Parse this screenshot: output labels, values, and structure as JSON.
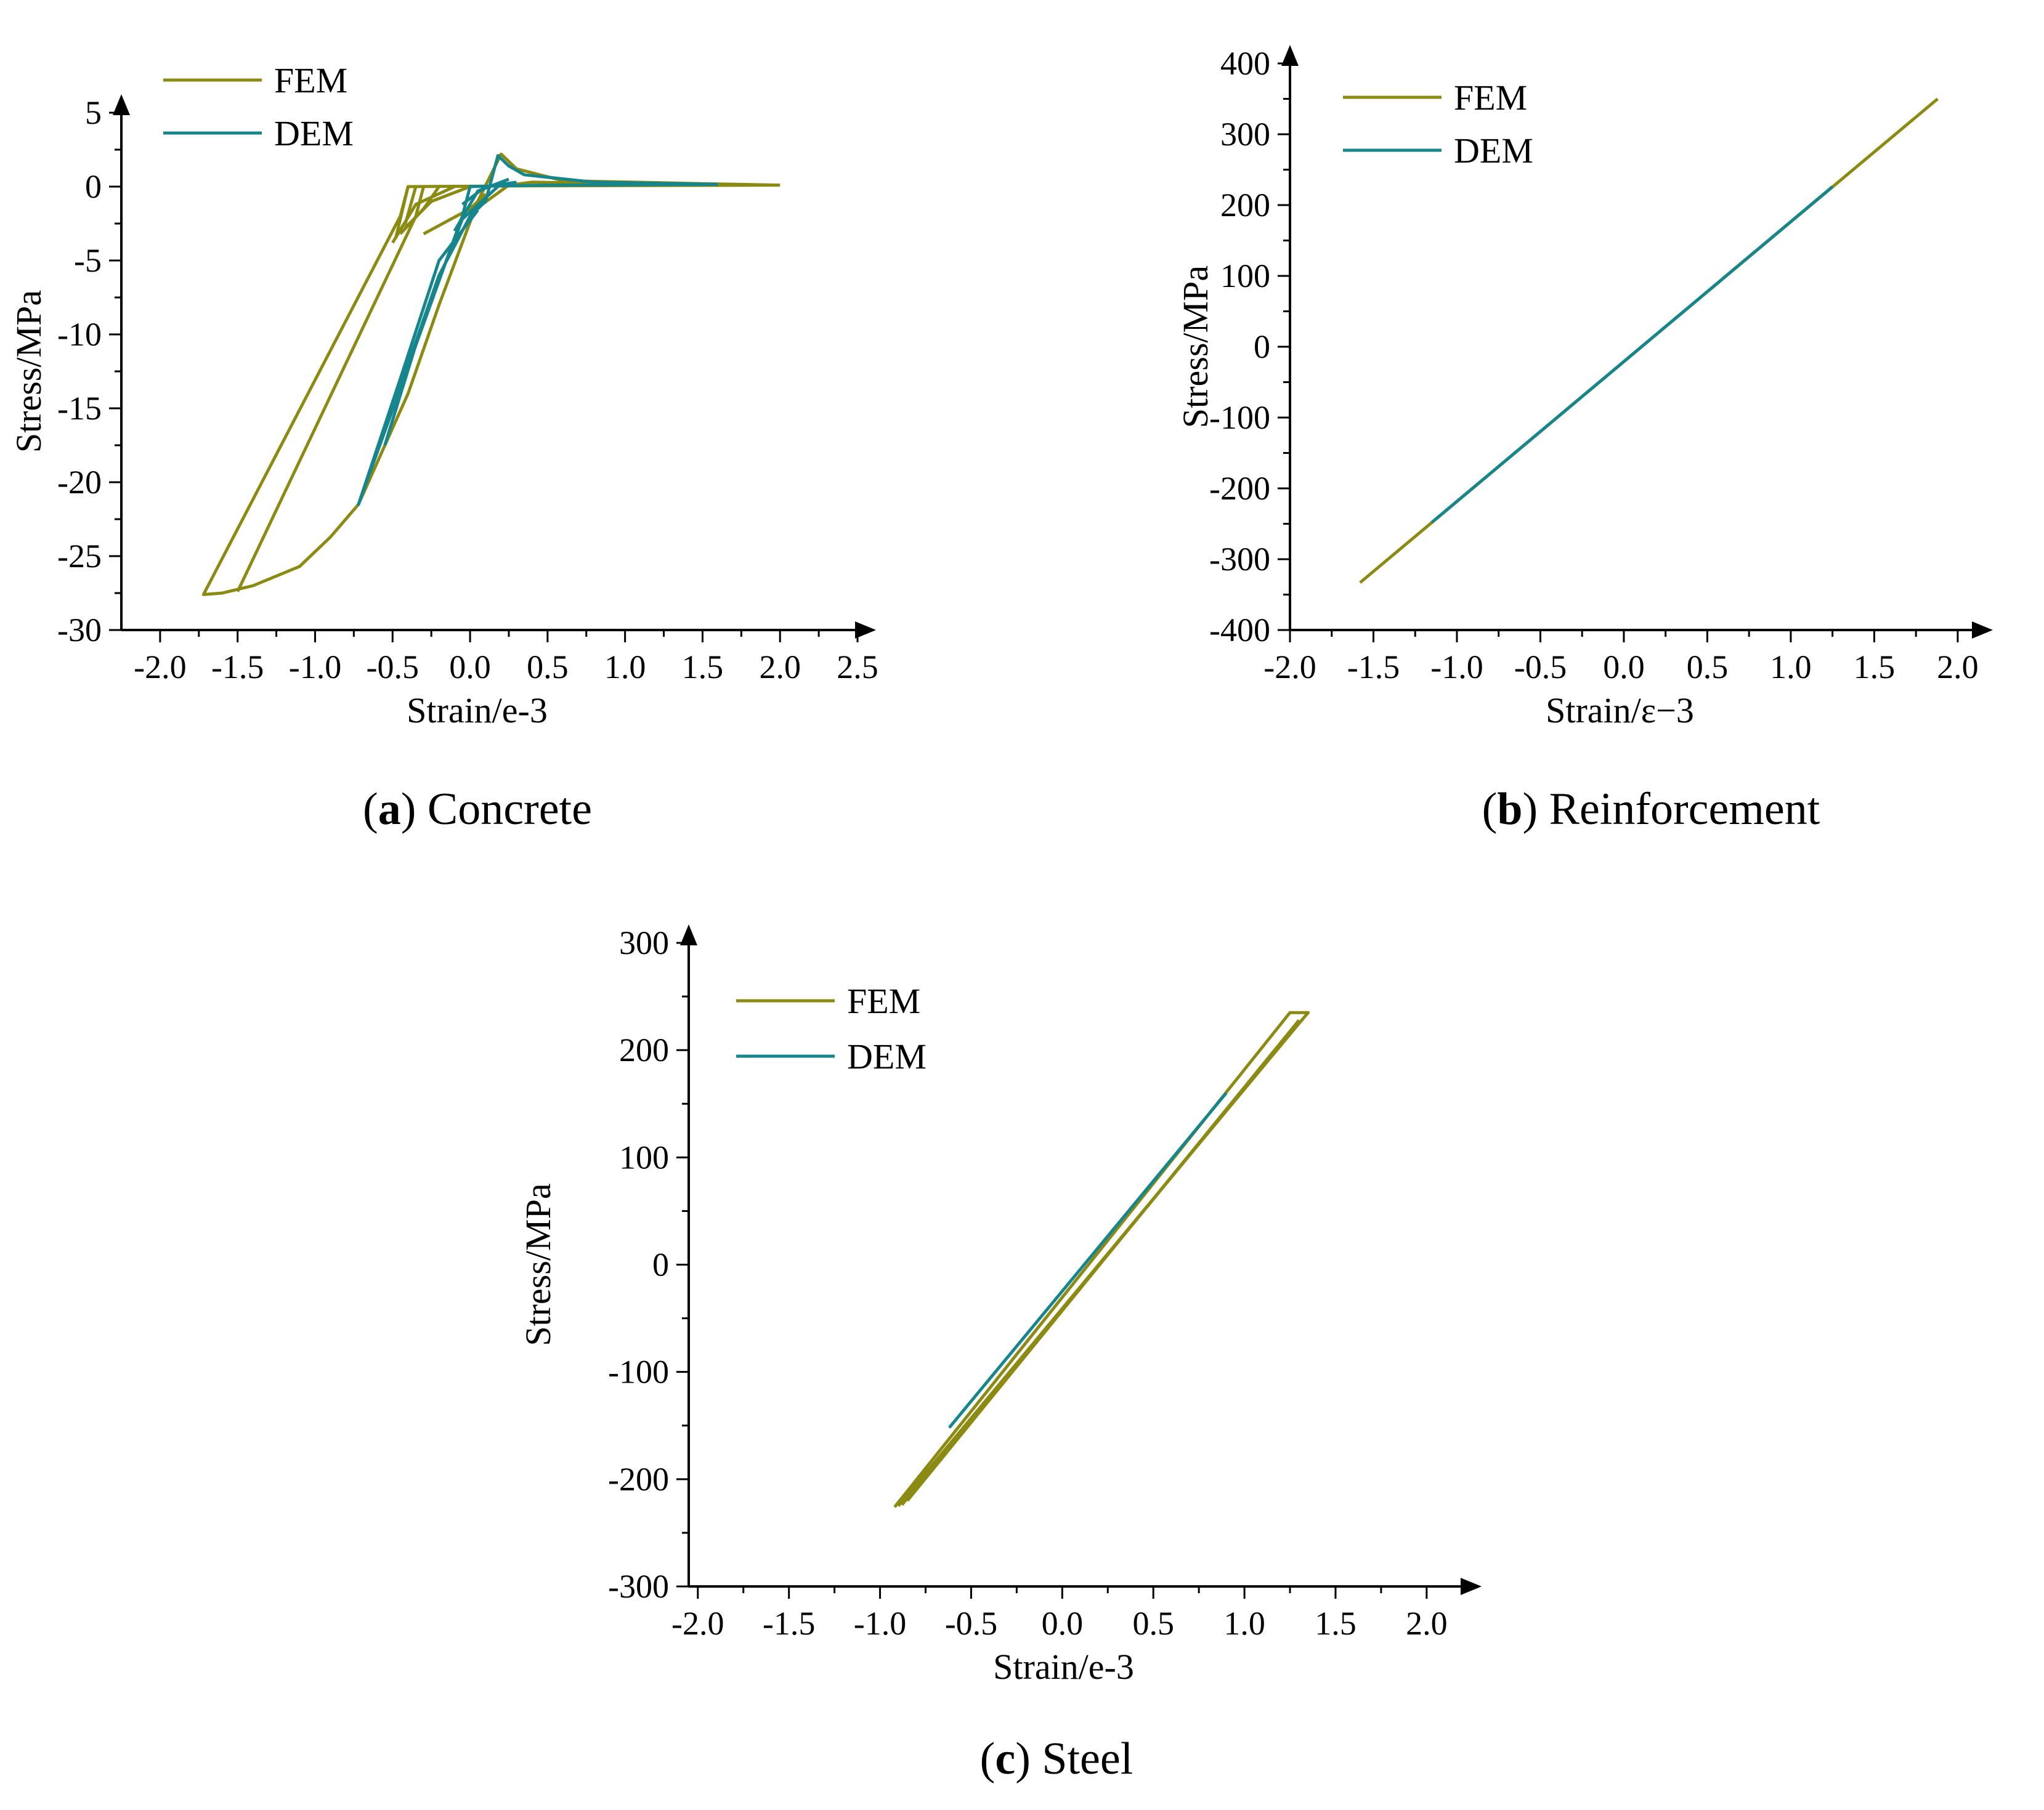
{
  "colors": {
    "FEM": "#8b8b14",
    "DEM": "#17858c",
    "axis": "#000000"
  },
  "chart_data": [
    {
      "type": "line",
      "caption": {
        "letter": "a",
        "text": "Concrete"
      },
      "xlabel": "Strain/e-3",
      "ylabel": "Stress/MPa",
      "xlim": [
        -2.25,
        2.5
      ],
      "ylim": [
        -30,
        5
      ],
      "xticks": [
        -2.0,
        -1.5,
        -1.0,
        -0.5,
        0.0,
        0.5,
        1.0,
        1.5,
        2.0,
        2.5
      ],
      "xtick_labels": [
        "-2.0",
        "-1.5",
        "-1.0",
        "-0.5",
        "0.0",
        "0.5",
        "1.0",
        "1.5",
        "2.0",
        "2.5"
      ],
      "yticks": [
        -30,
        -25,
        -20,
        -15,
        -10,
        -5,
        0,
        5
      ],
      "ytick_labels": [
        "-30",
        "-25",
        "-20",
        "-15",
        "-10",
        "-5",
        "0",
        "5"
      ],
      "legend_position": "top-left",
      "grid": false,
      "series": [
        {
          "name": "FEM",
          "segments": [
            [
              [
                2.0,
                0.1
              ],
              [
                0.4,
                0.05
              ],
              [
                -0.4,
                0
              ],
              [
                -0.45,
                -2
              ],
              [
                -1.72,
                -27.6
              ],
              [
                -1.6,
                -27.5
              ],
              [
                -1.4,
                -27
              ],
              [
                -1.1,
                -25.7
              ],
              [
                -0.9,
                -23.7
              ],
              [
                -0.72,
                -21.5
              ],
              [
                -0.4,
                -14
              ],
              [
                -0.2,
                -8
              ],
              [
                0.05,
                -1
              ],
              [
                0.2,
                2.2
              ],
              [
                0.3,
                1.2
              ],
              [
                0.6,
                0.4
              ],
              [
                1.5,
                0.2
              ],
              [
                2.0,
                0.1
              ]
            ],
            [
              [
                -0.3,
                0
              ],
              [
                -0.35,
                -2
              ],
              [
                -1.5,
                -27.4
              ]
            ],
            [
              [
                -0.2,
                0
              ],
              [
                -0.3,
                -1.5
              ],
              [
                -0.45,
                -3.2
              ]
            ],
            [
              [
                -0.1,
                0
              ],
              [
                -0.35,
                -1.2
              ],
              [
                -0.5,
                -3.8
              ]
            ],
            [
              [
                0,
                0
              ],
              [
                -0.25,
                -1
              ],
              [
                -0.42,
                -2.8
              ]
            ],
            [
              [
                -0.4,
                0
              ],
              [
                -0.48,
                -3.5
              ]
            ],
            [
              [
                -0.35,
                0
              ],
              [
                -0.42,
                -2.6
              ]
            ],
            [
              [
                0,
                -1.8
              ],
              [
                0.25,
                0.1
              ],
              [
                0.4,
                0.3
              ],
              [
                1.0,
                0.2
              ]
            ],
            [
              [
                -0.3,
                -3.2
              ],
              [
                0,
                -1.5
              ],
              [
                0.1,
                -0.5
              ]
            ]
          ]
        },
        {
          "name": "DEM",
          "segments": [
            [
              [
                1.6,
                0.15
              ],
              [
                0.5,
                0.1
              ],
              [
                0.2,
                0.05
              ],
              [
                0,
                0
              ],
              [
                -0.05,
                -2
              ],
              [
                -0.72,
                -21.5
              ],
              [
                -0.6,
                -18
              ],
              [
                -0.4,
                -12
              ],
              [
                -0.2,
                -6
              ],
              [
                0,
                -2
              ],
              [
                0.1,
                -1
              ],
              [
                0.18,
                2.1
              ],
              [
                0.25,
                1.4
              ],
              [
                0.35,
                0.8
              ],
              [
                0.8,
                0.3
              ],
              [
                1.6,
                0.15
              ]
            ],
            [
              [
                -0.72,
                -21.5
              ],
              [
                -0.45,
                -13
              ],
              [
                -0.2,
                -5
              ],
              [
                0.05,
                -1.6
              ]
            ],
            [
              [
                -0.55,
                -17.5
              ],
              [
                -0.3,
                -9
              ],
              [
                -0.05,
                -2.2
              ],
              [
                0.2,
                0.2
              ]
            ],
            [
              [
                -0.1,
                -3
              ],
              [
                0.05,
                -0.3
              ],
              [
                0.25,
                0.5
              ]
            ],
            [
              [
                -0.05,
                -1.2
              ],
              [
                0.1,
                0
              ],
              [
                0.3,
                0.3
              ]
            ]
          ]
        }
      ]
    },
    {
      "type": "line",
      "caption": {
        "letter": "b",
        "text": "Reinforcement"
      },
      "xlabel": "Strain/ε−3",
      "ylabel": "Stress/MPa",
      "xlim": [
        -2.0,
        2.1
      ],
      "ylim": [
        -400,
        400
      ],
      "xticks": [
        -2.0,
        -1.5,
        -1.0,
        -0.5,
        0.0,
        0.5,
        1.0,
        1.5,
        2.0
      ],
      "xtick_labels": [
        "-2.0",
        "-1.5",
        "-1.0",
        "-0.5",
        "0.0",
        "0.5",
        "1.0",
        "1.5",
        "2.0"
      ],
      "yticks": [
        -400,
        -300,
        -200,
        -100,
        0,
        100,
        200,
        300,
        400
      ],
      "ytick_labels": [
        "-400",
        "-300",
        "-200",
        "-100",
        "0",
        "100",
        "200",
        "300",
        "400"
      ],
      "legend_position": "top-left",
      "grid": false,
      "series": [
        {
          "name": "FEM",
          "segments": [
            [
              [
                -1.58,
                -333
              ],
              [
                1.88,
                350
              ]
            ]
          ]
        },
        {
          "name": "DEM",
          "segments": [
            [
              [
                -1.15,
                -248
              ],
              [
                1.25,
                226
              ]
            ]
          ]
        }
      ]
    },
    {
      "type": "line",
      "caption": {
        "letter": "c",
        "text": "Steel"
      },
      "xlabel": "Strain/e-3",
      "ylabel": "Stress/MPa",
      "xlim": [
        -2.05,
        2.2
      ],
      "ylim": [
        -300,
        300
      ],
      "xticks": [
        -2.0,
        -1.5,
        -1.0,
        -0.5,
        0.0,
        0.5,
        1.0,
        1.5,
        2.0
      ],
      "xtick_labels": [
        "-2.0",
        "-1.5",
        "-1.0",
        "-0.5",
        "0.0",
        "0.5",
        "1.0",
        "1.5",
        "2.0"
      ],
      "yticks": [
        -300,
        -200,
        -100,
        0,
        100,
        200,
        300
      ],
      "ytick_labels": [
        "-300",
        "-200",
        "-100",
        "0",
        "100",
        "200",
        "300"
      ],
      "legend_position": "top-left",
      "grid": false,
      "series": [
        {
          "name": "FEM",
          "segments": [
            [
              [
                -0.92,
                -226
              ],
              [
                1.25,
                235
              ],
              [
                1.35,
                235
              ],
              [
                1.3,
                225
              ],
              [
                -0.9,
                -225
              ]
            ],
            [
              [
                -0.88,
                -224
              ],
              [
                1.27,
                220
              ]
            ],
            [
              [
                -0.85,
                -220
              ],
              [
                1.3,
                228
              ]
            ]
          ]
        },
        {
          "name": "DEM",
          "segments": [
            [
              [
                -0.62,
                -152
              ],
              [
                0.9,
                160
              ]
            ]
          ]
        }
      ]
    }
  ]
}
